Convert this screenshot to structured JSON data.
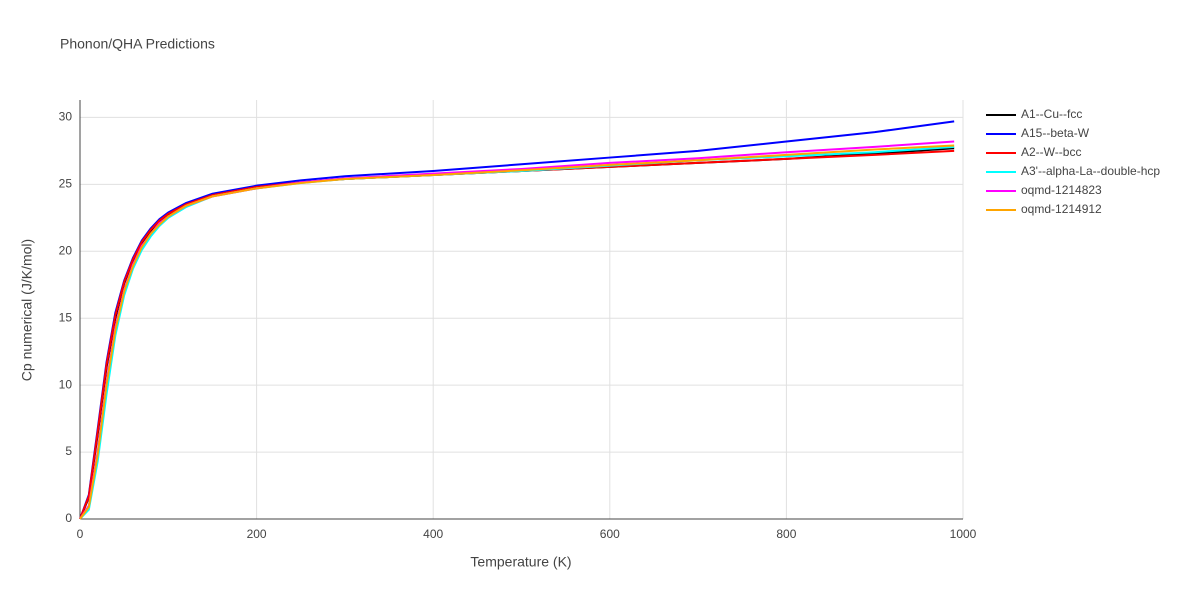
{
  "chart_data": {
    "type": "line",
    "title": "Phonon/QHA Predictions",
    "x_label": "Temperature (K)",
    "y_label": "Cp numerical (J/K/mol)",
    "x": [
      0,
      10,
      20,
      30,
      40,
      50,
      60,
      70,
      80,
      90,
      100,
      120,
      150,
      200,
      250,
      300,
      400,
      500,
      600,
      700,
      800,
      900,
      990
    ],
    "series": [
      {
        "name": "A1--Cu--fcc",
        "color": "#000000",
        "values": [
          0,
          1.6,
          6.3,
          11.3,
          15.0,
          17.6,
          19.3,
          20.6,
          21.5,
          22.2,
          22.7,
          23.5,
          24.2,
          24.8,
          25.15,
          25.4,
          25.7,
          26.0,
          26.3,
          26.6,
          26.9,
          27.3,
          27.7
        ]
      },
      {
        "name": "A15--beta-W",
        "color": "#0000ff",
        "values": [
          0,
          1.8,
          6.7,
          11.7,
          15.4,
          17.8,
          19.5,
          20.8,
          21.7,
          22.4,
          22.9,
          23.6,
          24.3,
          24.9,
          25.3,
          25.6,
          26.0,
          26.5,
          27.0,
          27.5,
          28.2,
          28.9,
          29.7
        ]
      },
      {
        "name": "A2--W--bcc",
        "color": "#ff0000",
        "values": [
          0,
          1.7,
          6.5,
          11.5,
          15.2,
          17.7,
          19.4,
          20.7,
          21.6,
          22.3,
          22.8,
          23.5,
          24.2,
          24.8,
          25.15,
          25.4,
          25.7,
          26.0,
          26.3,
          26.6,
          26.9,
          27.2,
          27.5
        ]
      },
      {
        "name": "A3'--alpha-La--double-hcp",
        "color": "#00ffff",
        "values": [
          0,
          0.7,
          4.3,
          9.3,
          13.7,
          16.7,
          18.7,
          20.1,
          21.1,
          21.9,
          22.5,
          23.3,
          24.1,
          24.7,
          25.1,
          25.4,
          25.7,
          26.0,
          26.4,
          26.8,
          27.1,
          27.4,
          27.8
        ]
      },
      {
        "name": "oqmd-1214823",
        "color": "#ff00ff",
        "values": [
          0,
          1.0,
          5.0,
          10.2,
          14.3,
          17.1,
          19.0,
          20.4,
          21.3,
          22.1,
          22.6,
          23.4,
          24.1,
          24.7,
          25.15,
          25.45,
          25.8,
          26.15,
          26.6,
          26.95,
          27.4,
          27.8,
          28.2
        ]
      },
      {
        "name": "oqmd-1214912",
        "color": "#ffa500",
        "values": [
          0,
          0.9,
          4.8,
          10.0,
          14.1,
          17.0,
          18.9,
          20.3,
          21.3,
          22.0,
          22.6,
          23.4,
          24.1,
          24.7,
          25.1,
          25.4,
          25.7,
          26.05,
          26.45,
          26.8,
          27.2,
          27.6,
          27.9
        ]
      }
    ],
    "xlim": [
      0,
      1000
    ],
    "ylim": [
      0,
      31.3
    ],
    "xticks": [
      0,
      200,
      400,
      600,
      800,
      1000
    ],
    "yticks": [
      0,
      5,
      10,
      15,
      20,
      25,
      30
    ],
    "grid": true
  }
}
